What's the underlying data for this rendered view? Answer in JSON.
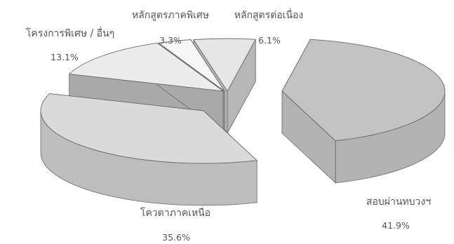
{
  "chart_data": {
    "type": "pie",
    "style": "3d-exploded",
    "slices": [
      {
        "label": "สอบผ่านทบวงฯ",
        "value": 41.9,
        "value_label": "41.9%",
        "top_color": "#c3c3c3",
        "side_color": "#b3b3b3"
      },
      {
        "label": "โควตาภาคเหนือ",
        "value": 35.6,
        "value_label": "35.6%",
        "top_color": "#dadada",
        "side_color": "#bdbdbd"
      },
      {
        "label": "โครงการพิเศษ / อื่นๆ",
        "value": 13.1,
        "value_label": "13.1%",
        "top_color": "#ececec",
        "side_color": "#a9a9a9"
      },
      {
        "label": "หลักสูตรภาคพิเศษ",
        "value": 3.3,
        "value_label": "3.3%",
        "top_color": "#f6f6f6",
        "side_color": "#9f9f9f"
      },
      {
        "label": "หลักสูตรต่อเนื่อง",
        "value": 6.1,
        "value_label": "6.1%",
        "top_color": "#e6e6e6",
        "side_color": "#b7b7b7"
      }
    ],
    "outline_color": "#6a6a6a"
  }
}
